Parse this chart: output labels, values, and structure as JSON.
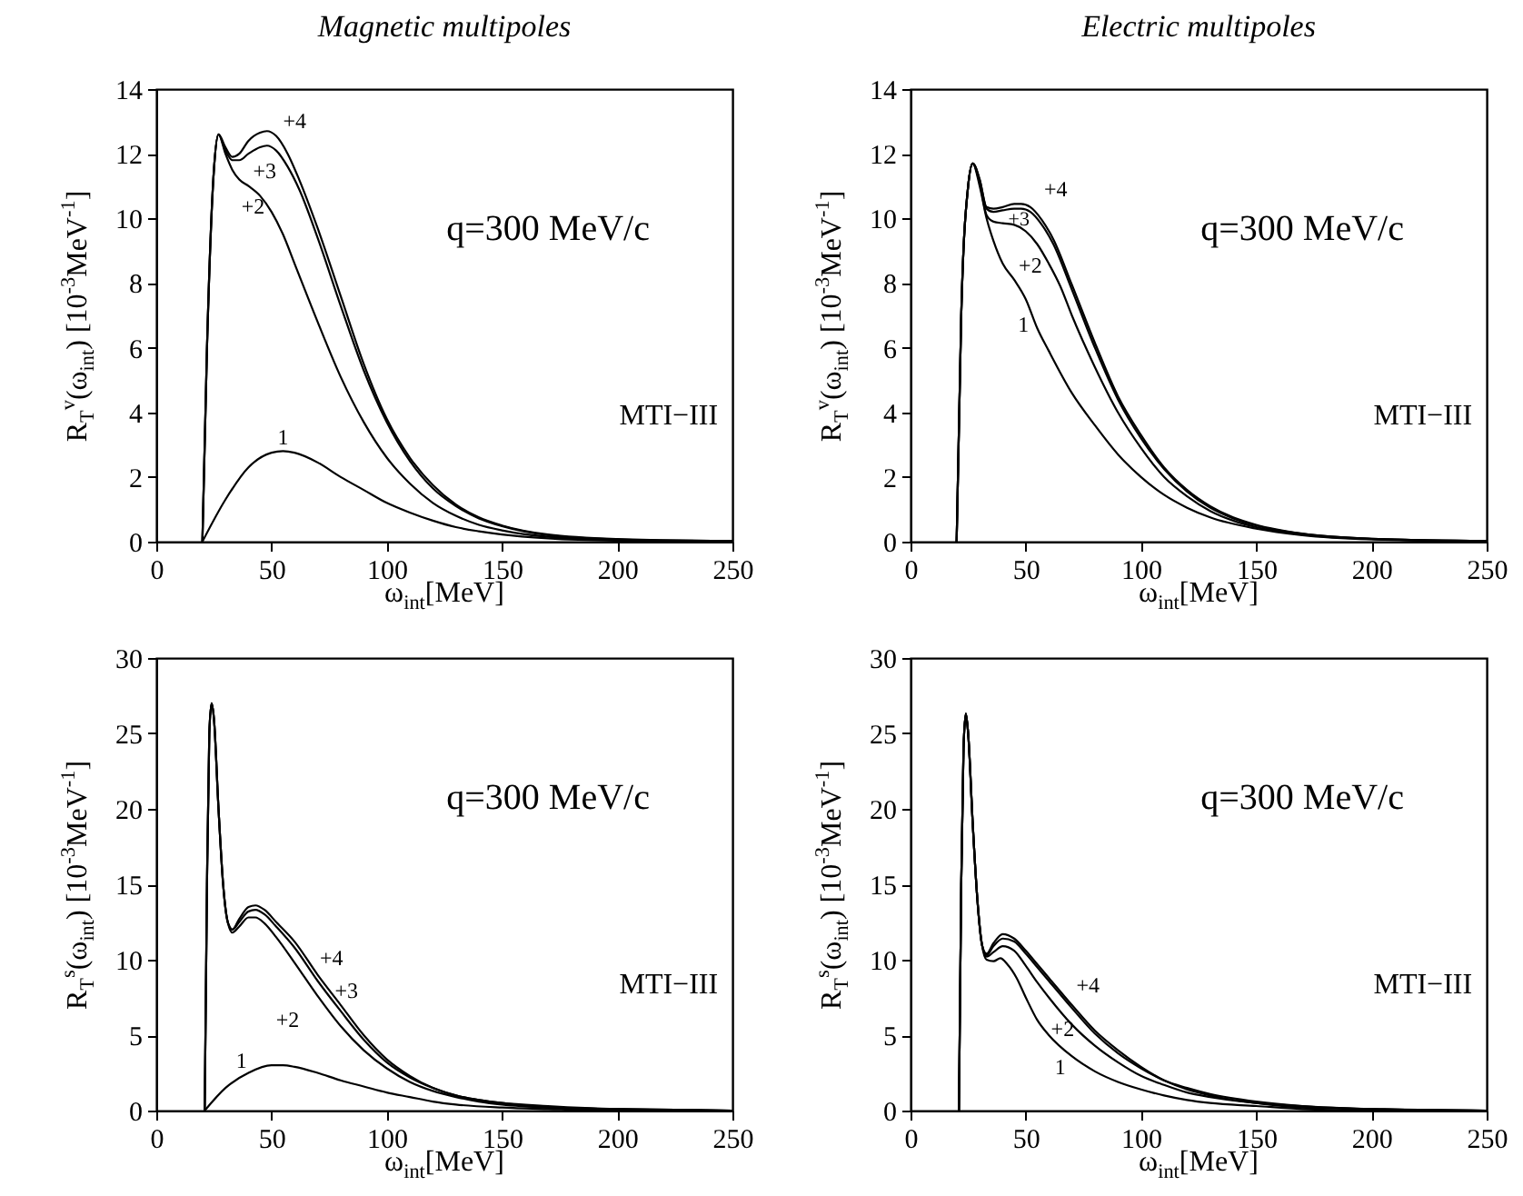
{
  "chart_data": [
    {
      "type": "line",
      "title": "Magnetic multipoles",
      "xlabel": "ω$_{int}$[MeV]",
      "ylabel": "R$_{T}$$^{v}$(ω$_{int}$)  [10$^{-3}$MeV$^{-1}$]",
      "xlim": [
        0,
        250
      ],
      "xticks": [
        0,
        50,
        100,
        150,
        200,
        250
      ],
      "ylim": [
        0,
        14
      ],
      "yticks": [
        0,
        2,
        4,
        6,
        8,
        10,
        12,
        14
      ],
      "annotations": [
        "q=300 MeV/c",
        "MTI−III",
        "+4",
        "+3",
        "+2",
        "1"
      ],
      "series": [
        {
          "color": "#000000",
          "x": [
            20,
            30,
            40,
            50,
            55,
            60,
            70,
            80,
            90,
            100,
            110,
            120,
            130,
            140,
            150,
            170,
            200,
            250
          ],
          "values": [
            0,
            1.3,
            2.3,
            2.75,
            2.8,
            2.75,
            2.45,
            2.0,
            1.6,
            1.2,
            0.9,
            0.65,
            0.45,
            0.32,
            0.22,
            0.1,
            0.03,
            0.01
          ]
        },
        {
          "color": "#000000",
          "x": [
            20,
            22,
            25,
            27,
            30,
            33,
            36,
            40,
            45,
            50,
            55,
            60,
            70,
            80,
            90,
            100,
            110,
            120,
            130,
            140,
            150,
            170,
            200,
            250
          ],
          "values": [
            0,
            6,
            11.5,
            12.6,
            12.0,
            11.5,
            11.2,
            11.0,
            10.7,
            10.2,
            9.5,
            8.6,
            6.8,
            5.1,
            3.7,
            2.6,
            1.8,
            1.2,
            0.8,
            0.52,
            0.35,
            0.15,
            0.05,
            0.01
          ]
        },
        {
          "color": "#000000",
          "x": [
            20,
            22,
            25,
            27,
            30,
            33,
            36,
            40,
            45,
            48,
            52,
            57,
            62,
            70,
            80,
            90,
            100,
            110,
            120,
            130,
            140,
            150,
            170,
            200,
            250
          ],
          "values": [
            0,
            6,
            11.5,
            12.6,
            12.1,
            11.8,
            11.8,
            12.0,
            12.2,
            12.25,
            12.1,
            11.6,
            10.9,
            9.4,
            7.3,
            5.3,
            3.7,
            2.5,
            1.65,
            1.1,
            0.72,
            0.48,
            0.2,
            0.07,
            0.02
          ]
        },
        {
          "color": "#000000",
          "x": [
            20,
            22,
            25,
            27,
            30,
            33,
            36,
            40,
            45,
            48,
            52,
            57,
            62,
            70,
            80,
            90,
            100,
            110,
            120,
            130,
            140,
            150,
            170,
            200,
            250
          ],
          "values": [
            0,
            6,
            11.5,
            12.6,
            12.2,
            11.9,
            12.0,
            12.4,
            12.65,
            12.7,
            12.55,
            12.0,
            11.2,
            9.7,
            7.6,
            5.5,
            3.8,
            2.6,
            1.75,
            1.15,
            0.75,
            0.5,
            0.22,
            0.08,
            0.02
          ]
        }
      ]
    },
    {
      "type": "line",
      "title": "Electric multipoles",
      "xlabel": "ω$_{int}$[MeV]",
      "ylabel": "R$_{T}$$^{v}$(ω$_{int}$)  [10$^{-3}$MeV$^{-1}$]",
      "xlim": [
        0,
        250
      ],
      "xticks": [
        0,
        50,
        100,
        150,
        200,
        250
      ],
      "ylim": [
        0,
        14
      ],
      "yticks": [
        0,
        2,
        4,
        6,
        8,
        10,
        12,
        14
      ],
      "annotations": [
        "q=300 MeV/c",
        "MTI−III",
        "+4",
        "+3",
        "+2",
        "1"
      ],
      "series": [
        {
          "color": "#000000",
          "x": [
            20,
            22,
            25,
            27,
            30,
            33,
            36,
            40,
            45,
            50,
            55,
            60,
            70,
            80,
            90,
            100,
            110,
            120,
            130,
            150,
            170,
            200,
            250
          ],
          "values": [
            0,
            7,
            11,
            11.7,
            11.0,
            10.0,
            9.3,
            8.6,
            8.1,
            7.5,
            6.6,
            5.9,
            4.6,
            3.6,
            2.7,
            2.0,
            1.45,
            1.05,
            0.75,
            0.4,
            0.2,
            0.07,
            0.01
          ]
        },
        {
          "color": "#000000",
          "x": [
            20,
            22,
            25,
            27,
            30,
            33,
            36,
            40,
            45,
            50,
            55,
            60,
            65,
            70,
            80,
            90,
            100,
            110,
            120,
            130,
            140,
            150,
            170,
            200,
            250
          ],
          "values": [
            0,
            7,
            11,
            11.7,
            11.1,
            10.1,
            9.9,
            9.85,
            9.8,
            9.6,
            9.2,
            8.6,
            7.9,
            7.0,
            5.4,
            4.0,
            2.9,
            2.0,
            1.4,
            0.95,
            0.65,
            0.45,
            0.22,
            0.08,
            0.02
          ]
        },
        {
          "color": "#000000",
          "x": [
            20,
            22,
            25,
            27,
            30,
            33,
            36,
            40,
            45,
            48,
            52,
            57,
            62,
            70,
            80,
            90,
            100,
            110,
            120,
            130,
            140,
            150,
            170,
            200,
            250
          ],
          "values": [
            0,
            7,
            11,
            11.7,
            11.2,
            10.3,
            10.2,
            10.25,
            10.3,
            10.3,
            10.2,
            9.8,
            9.2,
            7.8,
            6.0,
            4.4,
            3.2,
            2.25,
            1.55,
            1.05,
            0.72,
            0.5,
            0.24,
            0.09,
            0.02
          ]
        },
        {
          "color": "#000000",
          "x": [
            20,
            22,
            25,
            27,
            30,
            33,
            36,
            40,
            45,
            48,
            52,
            57,
            62,
            70,
            80,
            90,
            100,
            110,
            120,
            130,
            140,
            150,
            170,
            200,
            250
          ],
          "values": [
            0,
            7,
            11,
            11.7,
            11.2,
            10.35,
            10.3,
            10.35,
            10.45,
            10.45,
            10.35,
            9.95,
            9.35,
            7.95,
            6.15,
            4.5,
            3.3,
            2.3,
            1.6,
            1.1,
            0.75,
            0.52,
            0.25,
            0.09,
            0.02
          ]
        }
      ]
    },
    {
      "type": "line",
      "xlabel": "ω$_{int}$[MeV]",
      "ylabel": "R$_{T}$$^{s}$(ω$_{int}$)  [10$^{-3}$MeV$^{-1}$]",
      "xlim": [
        0,
        250
      ],
      "xticks": [
        0,
        50,
        100,
        150,
        200,
        250
      ],
      "ylim": [
        0,
        30
      ],
      "yticks": [
        0,
        5,
        10,
        15,
        20,
        25,
        30
      ],
      "annotations": [
        "q=300 MeV/c",
        "MTI−III",
        "+4",
        "+3",
        "+2",
        "1"
      ],
      "series": [
        {
          "color": "#000000",
          "x": [
            21,
            30,
            40,
            50,
            55,
            60,
            70,
            80,
            90,
            100,
            110,
            120,
            130,
            150,
            170,
            200,
            250
          ],
          "values": [
            0,
            1.5,
            2.5,
            3.0,
            3.0,
            2.9,
            2.5,
            2.0,
            1.6,
            1.2,
            0.9,
            0.6,
            0.4,
            0.2,
            0.1,
            0,
            0
          ]
        },
        {
          "color": "#000000",
          "x": [
            21,
            22,
            23,
            24,
            25,
            27,
            29,
            31,
            33,
            36,
            40,
            43,
            47,
            52,
            60,
            70,
            80,
            90,
            100,
            110,
            120,
            130,
            140,
            150,
            170,
            200,
            250
          ],
          "values": [
            0,
            15,
            25,
            27,
            26,
            20,
            15,
            12.5,
            11.8,
            12.2,
            12.8,
            12.8,
            12.4,
            11.5,
            9.8,
            7.6,
            5.6,
            4.0,
            2.8,
            1.9,
            1.3,
            0.9,
            0.6,
            0.4,
            0.2,
            0.1,
            0
          ]
        },
        {
          "color": "#000000",
          "x": [
            21,
            22,
            23,
            24,
            25,
            27,
            29,
            31,
            33,
            36,
            40,
            43,
            47,
            52,
            60,
            70,
            80,
            90,
            100,
            110,
            120,
            130,
            140,
            150,
            170,
            200,
            250
          ],
          "values": [
            0,
            15,
            25,
            27,
            26,
            20,
            15,
            12.5,
            12.0,
            12.5,
            13.2,
            13.3,
            13.0,
            12.2,
            10.8,
            8.6,
            6.6,
            4.7,
            3.2,
            2.2,
            1.5,
            1.0,
            0.7,
            0.5,
            0.2,
            0.1,
            0
          ]
        },
        {
          "color": "#000000",
          "x": [
            21,
            22,
            23,
            24,
            25,
            27,
            29,
            31,
            33,
            36,
            40,
            43,
            47,
            52,
            60,
            70,
            80,
            90,
            100,
            110,
            120,
            130,
            140,
            150,
            170,
            200,
            250
          ],
          "values": [
            0,
            15,
            25,
            27,
            26,
            20,
            15,
            12.5,
            12.0,
            12.7,
            13.5,
            13.6,
            13.3,
            12.5,
            11.2,
            9.0,
            7.0,
            5.0,
            3.4,
            2.3,
            1.5,
            1.0,
            0.7,
            0.5,
            0.3,
            0.1,
            0
          ]
        }
      ]
    },
    {
      "type": "line",
      "xlabel": "ω$_{int}$[MeV]",
      "ylabel": "R$_{T}$$^{s}$(ω$_{int}$)  [10$^{-3}$MeV$^{-1}$]",
      "xlim": [
        0,
        250
      ],
      "xticks": [
        0,
        50,
        100,
        150,
        200,
        250
      ],
      "ylim": [
        0,
        30
      ],
      "yticks": [
        0,
        5,
        10,
        15,
        20,
        25,
        30
      ],
      "annotations": [
        "q=300 MeV/c",
        "MTI−III",
        "+4",
        "+2",
        "1"
      ],
      "series": [
        {
          "color": "#000000",
          "x": [
            21,
            22,
            23,
            24,
            25,
            27,
            29,
            31,
            33,
            36,
            39,
            42,
            46,
            50,
            55,
            60,
            70,
            80,
            90,
            100,
            110,
            120,
            130,
            150,
            170,
            200,
            250
          ],
          "values": [
            0,
            15,
            24,
            26.3,
            25,
            19,
            14,
            11,
            10.0,
            9.9,
            10.1,
            9.7,
            8.8,
            7.5,
            6.0,
            5.0,
            3.6,
            2.6,
            1.9,
            1.4,
            1.0,
            0.7,
            0.5,
            0.3,
            0.1,
            0,
            0
          ]
        },
        {
          "color": "#000000",
          "x": [
            21,
            22,
            23,
            24,
            25,
            27,
            29,
            31,
            33,
            36,
            40,
            45,
            50,
            55,
            60,
            70,
            80,
            90,
            100,
            110,
            120,
            130,
            150,
            170,
            200,
            250
          ],
          "values": [
            0,
            15,
            24,
            26.3,
            25,
            19,
            14,
            11,
            10.2,
            10.5,
            10.9,
            10.6,
            9.6,
            8.5,
            7.5,
            5.7,
            4.3,
            3.2,
            2.3,
            1.7,
            1.2,
            0.9,
            0.5,
            0.2,
            0.1,
            0
          ]
        },
        {
          "color": "#000000",
          "x": [
            21,
            22,
            23,
            24,
            25,
            27,
            29,
            31,
            33,
            36,
            40,
            45,
            50,
            55,
            60,
            70,
            80,
            90,
            100,
            110,
            120,
            130,
            150,
            170,
            200,
            250
          ],
          "values": [
            0,
            15,
            24,
            26.3,
            25,
            19,
            14,
            11,
            10.3,
            10.9,
            11.4,
            11.2,
            10.4,
            9.5,
            8.6,
            6.8,
            5.1,
            3.8,
            2.8,
            2.0,
            1.4,
            1.0,
            0.5,
            0.3,
            0.1,
            0
          ]
        },
        {
          "color": "#000000",
          "x": [
            21,
            22,
            23,
            24,
            25,
            27,
            29,
            31,
            33,
            36,
            40,
            45,
            50,
            55,
            60,
            70,
            80,
            90,
            100,
            110,
            120,
            130,
            150,
            170,
            200,
            250
          ],
          "values": [
            0,
            15,
            24,
            26.3,
            25,
            19,
            14,
            11,
            10.4,
            11.1,
            11.7,
            11.4,
            10.6,
            9.7,
            8.8,
            7.0,
            5.3,
            4.0,
            2.9,
            2.0,
            1.5,
            1.1,
            0.6,
            0.3,
            0.1,
            0
          ]
        }
      ]
    }
  ]
}
